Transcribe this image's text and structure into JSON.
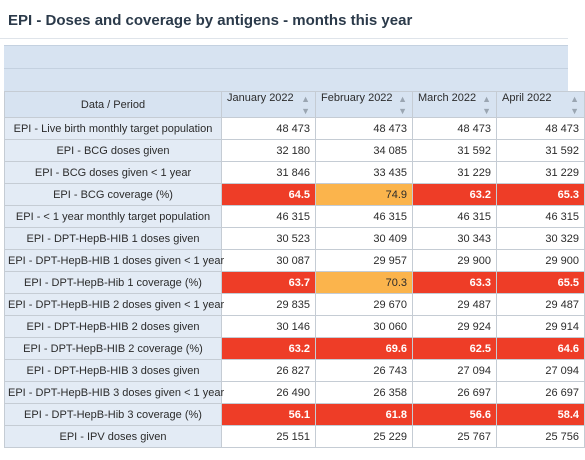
{
  "title": "EPI - Doses and coverage by antigens - months this year",
  "colors": {
    "header_bg": "#d7e3f1",
    "label_bg": "#e3ebf5",
    "low_coverage": "#ee3d27",
    "mid_coverage": "#fbb44c"
  },
  "table": {
    "header_label": "Data / Period",
    "columns": [
      "January 2022",
      "February 2022",
      "March 2022",
      "April 2022"
    ],
    "sort_icon": "sort-updown-icon",
    "rows": [
      {
        "label": "EPI - Live birth monthly target population",
        "values": [
          "48 473",
          "48 473",
          "48 473",
          "48 473"
        ],
        "status": [
          "",
          "",
          "",
          ""
        ]
      },
      {
        "label": "EPI - BCG doses given",
        "values": [
          "32 180",
          "34 085",
          "31 592",
          "31 592"
        ],
        "status": [
          "",
          "",
          "",
          ""
        ]
      },
      {
        "label": "EPI - BCG doses given < 1 year",
        "values": [
          "31 846",
          "33 435",
          "31 229",
          "31 229"
        ],
        "status": [
          "",
          "",
          "",
          ""
        ]
      },
      {
        "label": "EPI - BCG coverage (%)",
        "values": [
          "64.5",
          "74.9",
          "63.2",
          "65.3"
        ],
        "status": [
          "red",
          "orange",
          "red",
          "red"
        ]
      },
      {
        "label": "EPI - < 1 year monthly target population",
        "values": [
          "46 315",
          "46 315",
          "46 315",
          "46 315"
        ],
        "status": [
          "",
          "",
          "",
          ""
        ]
      },
      {
        "label": "EPI - DPT-HepB-HIB 1 doses given",
        "values": [
          "30 523",
          "30 409",
          "30 343",
          "30 329"
        ],
        "status": [
          "",
          "",
          "",
          ""
        ]
      },
      {
        "label": "EPI - DPT-HepB-HIB 1 doses given < 1 year",
        "values": [
          "30 087",
          "29 957",
          "29 900",
          "29 900"
        ],
        "status": [
          "",
          "",
          "",
          ""
        ]
      },
      {
        "label": "EPI - DPT-HepB-Hib 1 coverage (%)",
        "values": [
          "63.7",
          "70.3",
          "63.3",
          "65.5"
        ],
        "status": [
          "red",
          "orange",
          "red",
          "red"
        ]
      },
      {
        "label": "EPI - DPT-HepB-HIB 2 doses given < 1 year",
        "values": [
          "29 835",
          "29 670",
          "29 487",
          "29 487"
        ],
        "status": [
          "",
          "",
          "",
          ""
        ]
      },
      {
        "label": "EPI - DPT-HepB-HIB 2 doses given",
        "values": [
          "30 146",
          "30 060",
          "29 924",
          "29 914"
        ],
        "status": [
          "",
          "",
          "",
          ""
        ]
      },
      {
        "label": "EPI - DPT-HepB-HIB 2 coverage (%)",
        "values": [
          "63.2",
          "69.6",
          "62.5",
          "64.6"
        ],
        "status": [
          "red",
          "red",
          "red",
          "red"
        ]
      },
      {
        "label": "EPI - DPT-HepB-HIB 3 doses given",
        "values": [
          "26 827",
          "26 743",
          "27 094",
          "27 094"
        ],
        "status": [
          "",
          "",
          "",
          ""
        ]
      },
      {
        "label": "EPI - DPT-HepB-HIB 3 doses given < 1 year",
        "values": [
          "26 490",
          "26 358",
          "26 697",
          "26 697"
        ],
        "status": [
          "",
          "",
          "",
          ""
        ]
      },
      {
        "label": "EPI - DPT-HepB-Hib 3 coverage (%)",
        "values": [
          "56.1",
          "61.8",
          "56.6",
          "58.4"
        ],
        "status": [
          "red",
          "red",
          "red",
          "red"
        ]
      },
      {
        "label": "EPI - IPV doses given",
        "values": [
          "25 151",
          "25 229",
          "25 767",
          "25 756"
        ],
        "status": [
          "",
          "",
          "",
          ""
        ]
      }
    ]
  }
}
